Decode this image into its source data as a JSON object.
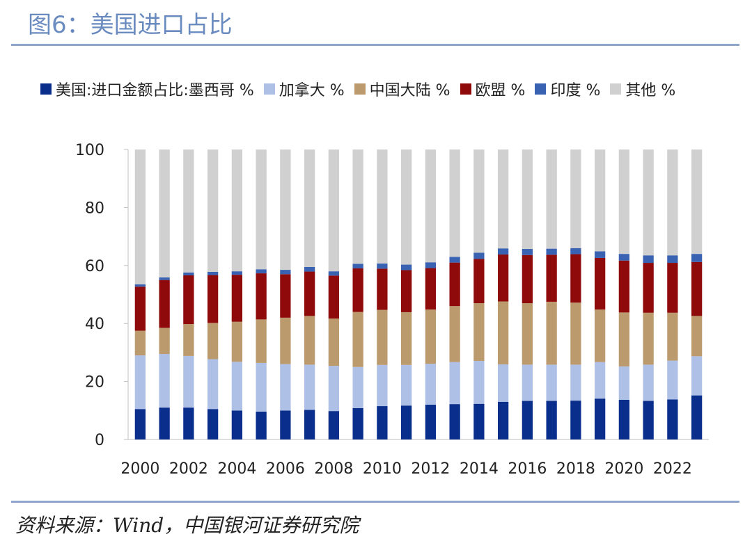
{
  "title": "图6：美国进口占比",
  "source": "资料来源：Wind，中国银河证券研究院",
  "chart_data": {
    "type": "bar",
    "stacked": true,
    "legend_position": "top",
    "ylim": [
      0,
      100
    ],
    "yticks": [
      0,
      20,
      40,
      60,
      80,
      100
    ],
    "x": [
      2000,
      2001,
      2002,
      2003,
      2004,
      2005,
      2006,
      2007,
      2008,
      2009,
      2010,
      2011,
      2012,
      2013,
      2014,
      2015,
      2016,
      2017,
      2018,
      2019,
      2020,
      2021,
      2022,
      2023
    ],
    "xtick_labels": [
      "2000",
      "2002",
      "2004",
      "2006",
      "2008",
      "2010",
      "2012",
      "2014",
      "2016",
      "2018",
      "2020",
      "2022"
    ],
    "series": [
      {
        "name": "美国:进口金额占比:墨西哥 %",
        "color": "#0a2e8c",
        "values": [
          10.5,
          11.0,
          11.0,
          10.5,
          10.0,
          9.6,
          10.0,
          10.2,
          9.8,
          10.8,
          11.5,
          11.7,
          12.0,
          12.2,
          12.3,
          13.0,
          13.3,
          13.3,
          13.4,
          14.1,
          13.7,
          13.3,
          13.8,
          15.2
        ]
      },
      {
        "name": "加拿大 %",
        "color": "#aec0e6",
        "values": [
          18.5,
          18.5,
          17.8,
          17.2,
          16.8,
          16.8,
          16.0,
          15.6,
          15.6,
          14.2,
          14.2,
          14.0,
          14.1,
          14.5,
          14.8,
          12.9,
          12.5,
          12.5,
          12.4,
          12.6,
          11.5,
          12.5,
          13.4,
          13.5
        ]
      },
      {
        "name": "中国大陆 %",
        "color": "#bb9a6e",
        "values": [
          8.5,
          9.0,
          11.0,
          12.5,
          13.8,
          15.0,
          16.0,
          16.8,
          16.3,
          19.0,
          19.0,
          18.2,
          18.7,
          19.3,
          19.9,
          21.7,
          21.2,
          21.7,
          21.4,
          18.1,
          18.6,
          17.9,
          16.5,
          13.9
        ]
      },
      {
        "name": "欧盟 %",
        "color": "#8f0b0b",
        "values": [
          15.2,
          16.5,
          16.8,
          16.5,
          16.2,
          15.9,
          15.0,
          15.3,
          14.8,
          15.0,
          14.2,
          14.5,
          14.3,
          15.0,
          15.3,
          16.2,
          16.6,
          16.2,
          16.7,
          17.8,
          17.9,
          17.2,
          17.2,
          18.6
        ]
      },
      {
        "name": "印度 %",
        "color": "#3a62b3",
        "values": [
          0.8,
          0.9,
          1.0,
          1.1,
          1.2,
          1.4,
          1.5,
          1.6,
          1.5,
          1.6,
          1.8,
          1.9,
          2.0,
          2.0,
          2.1,
          2.1,
          2.1,
          2.1,
          2.1,
          2.3,
          2.3,
          2.6,
          2.6,
          2.8
        ]
      },
      {
        "name": "其他 %",
        "color": "#d0d0d0",
        "values": [
          46.5,
          44.1,
          42.4,
          42.2,
          42.0,
          41.3,
          41.5,
          40.5,
          42.0,
          39.4,
          39.3,
          39.7,
          38.9,
          37.0,
          35.6,
          34.1,
          34.3,
          34.2,
          34.0,
          35.1,
          36.0,
          36.5,
          36.5,
          36.0
        ]
      }
    ]
  }
}
